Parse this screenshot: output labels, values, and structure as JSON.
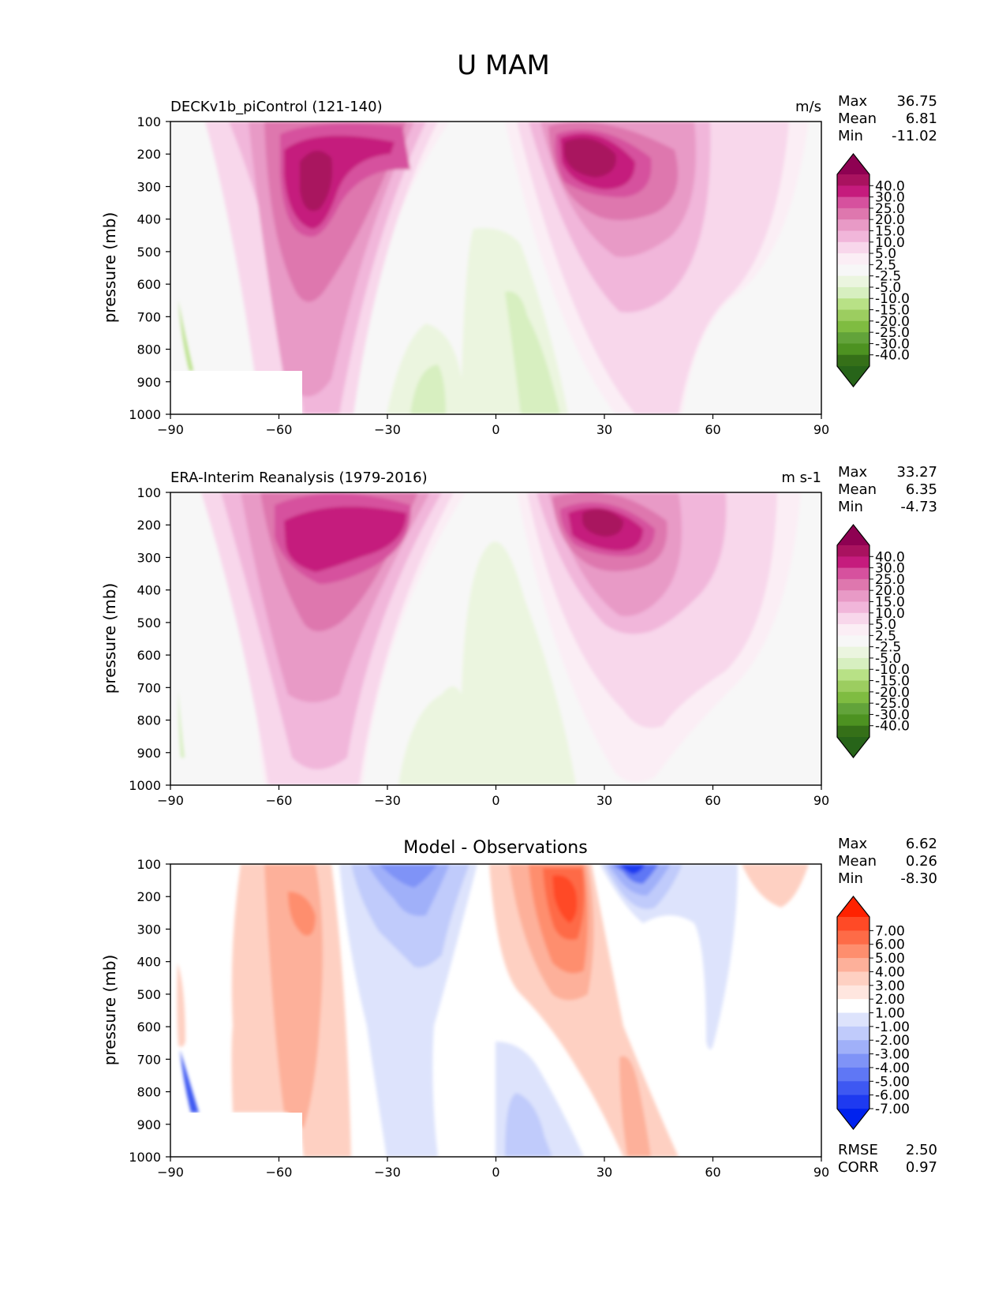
{
  "figure": {
    "title": "U MAM"
  },
  "chart_data": [
    {
      "type": "contour",
      "name": "model",
      "title": "DECKv1b_piControl (121-140)",
      "units": "m/s",
      "xlabel": "",
      "ylabel": "pressure (mb)",
      "x_ticks": [
        "−90",
        "−60",
        "−30",
        "0",
        "30",
        "60",
        "90"
      ],
      "y_ticks": [
        "100",
        "200",
        "300",
        "400",
        "500",
        "600",
        "700",
        "800",
        "900",
        "1000"
      ],
      "xlim": [
        -90,
        90
      ],
      "ylim": [
        1000,
        100
      ],
      "stats": [
        {
          "label": "Max",
          "value": "36.75"
        },
        {
          "label": "Mean",
          "value": "6.81"
        },
        {
          "label": "Min",
          "value": "-11.02"
        }
      ],
      "colorbar": {
        "labels": [
          "40.0",
          "30.0",
          "25.0",
          "20.0",
          "15.0",
          "10.0",
          "5.0",
          "2.5",
          "-2.5",
          "-5.0",
          "-10.0",
          "-15.0",
          "-20.0",
          "-25.0",
          "-30.0",
          "-40.0"
        ],
        "colors": [
          "#8e0152",
          "#a9125f",
          "#c51b7d",
          "#d6519e",
          "#de77ae",
          "#e89ac6",
          "#f1b6da",
          "#f8d7eb",
          "#fbeef5",
          "#f7f7f7",
          "#ebf5df",
          "#d7efc0",
          "#b8e186",
          "#9ccd60",
          "#7fbc41",
          "#62a33a",
          "#4d9221",
          "#357018",
          "#276419"
        ]
      }
    },
    {
      "type": "contour",
      "name": "observations",
      "title": "ERA-Interim Reanalysis (1979-2016)",
      "units": "m s-1",
      "xlabel": "",
      "ylabel": "pressure (mb)",
      "x_ticks": [
        "−90",
        "−60",
        "−30",
        "0",
        "30",
        "60",
        "90"
      ],
      "y_ticks": [
        "100",
        "200",
        "300",
        "400",
        "500",
        "600",
        "700",
        "800",
        "900",
        "1000"
      ],
      "xlim": [
        -90,
        90
      ],
      "ylim": [
        1000,
        100
      ],
      "stats": [
        {
          "label": "Max",
          "value": "33.27"
        },
        {
          "label": "Mean",
          "value": "6.35"
        },
        {
          "label": "Min",
          "value": "-4.73"
        }
      ],
      "colorbar": {
        "labels": [
          "40.0",
          "30.0",
          "25.0",
          "20.0",
          "15.0",
          "10.0",
          "5.0",
          "2.5",
          "-2.5",
          "-5.0",
          "-10.0",
          "-15.0",
          "-20.0",
          "-25.0",
          "-30.0",
          "-40.0"
        ],
        "colors": [
          "#8e0152",
          "#a9125f",
          "#c51b7d",
          "#d6519e",
          "#de77ae",
          "#e89ac6",
          "#f1b6da",
          "#f8d7eb",
          "#fbeef5",
          "#f7f7f7",
          "#ebf5df",
          "#d7efc0",
          "#b8e186",
          "#9ccd60",
          "#7fbc41",
          "#62a33a",
          "#4d9221",
          "#357018",
          "#276419"
        ]
      }
    },
    {
      "type": "contour",
      "name": "difference",
      "title": "Model - Observations",
      "units": "",
      "xlabel": "",
      "ylabel": "pressure (mb)",
      "x_ticks": [
        "−90",
        "−60",
        "−30",
        "0",
        "30",
        "60",
        "90"
      ],
      "y_ticks": [
        "100",
        "200",
        "300",
        "400",
        "500",
        "600",
        "700",
        "800",
        "900",
        "1000"
      ],
      "xlim": [
        -90,
        90
      ],
      "ylim": [
        1000,
        100
      ],
      "stats": [
        {
          "label": "Max",
          "value": "6.62"
        },
        {
          "label": "Mean",
          "value": "0.26"
        },
        {
          "label": "Min",
          "value": "-8.30"
        }
      ],
      "extra_stats": [
        {
          "label": "RMSE",
          "value": "2.50"
        },
        {
          "label": "CORR",
          "value": "0.97"
        }
      ],
      "colorbar": {
        "labels": [
          "7.00",
          "6.00",
          "5.00",
          "4.00",
          "3.00",
          "2.00",
          "1.00",
          "-1.00",
          "-2.00",
          "-3.00",
          "-4.00",
          "-5.00",
          "-6.00",
          "-7.00"
        ],
        "colors": [
          "#ff2200",
          "#ff4a26",
          "#fe6b47",
          "#fe8e6e",
          "#fdb09a",
          "#fed0c2",
          "#ffe6df",
          "#ffffff",
          "#dde3fc",
          "#c0cbfb",
          "#a0b0f9",
          "#7f93f7",
          "#5f77f5",
          "#3e58f2",
          "#1e3af0",
          "#0022ee"
        ]
      }
    }
  ]
}
